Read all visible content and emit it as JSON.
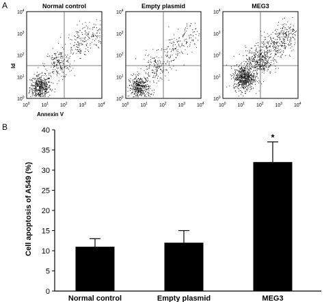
{
  "panel_a": {
    "letter": "A",
    "x_axis_label": "Annexin V",
    "y_axis_label": "Id",
    "tick_base": "10",
    "tick_exponents": [
      "0",
      "1",
      "2",
      "3",
      "4"
    ],
    "plots": [
      {
        "title": "Normal control"
      },
      {
        "title": "Empty plasmid"
      },
      {
        "title": "MEG3"
      }
    ]
  },
  "panel_b": {
    "letter": "B"
  },
  "chart_data": {
    "type": "bar",
    "categories": [
      "Normal control",
      "Empty plasmid",
      "MEG3"
    ],
    "values": [
      11,
      12,
      32
    ],
    "errors": [
      2,
      3,
      5
    ],
    "annotations": [
      "",
      "",
      "*"
    ],
    "ylabel": "Cell apoptosis of A549 (%)",
    "xlabel": "",
    "ylim": [
      0,
      40
    ],
    "yticks": [
      0,
      5,
      10,
      15,
      20,
      25,
      30,
      35,
      40
    ],
    "bar_color": "#000000",
    "grid": false
  }
}
